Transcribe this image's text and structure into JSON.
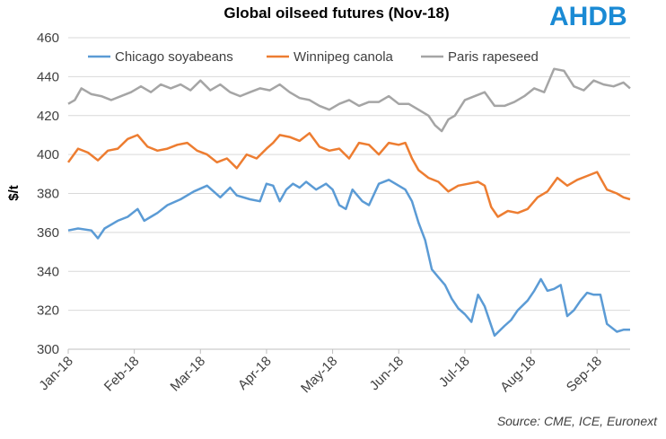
{
  "chart_data": {
    "type": "line",
    "title": "Global oilseed futures (Nov-18)",
    "ylabel": "$/t",
    "xlabel": "",
    "ylim": [
      300,
      460
    ],
    "yticks": [
      300,
      320,
      340,
      360,
      380,
      400,
      420,
      440,
      460
    ],
    "xlim": [
      0,
      8.5
    ],
    "x_tick_labels": [
      "Jan-18",
      "Feb-18",
      "Mar-18",
      "Apr-18",
      "May-18",
      "Jun-18",
      "Jul-18",
      "Aug-18",
      "Sep-18"
    ],
    "grid": "horizontal",
    "legend_position": "top",
    "source": "Source: CME, ICE, Euronext",
    "logo_text": "AHDB",
    "series": [
      {
        "name": "Chicago soyabeans",
        "color": "#5b9bd5",
        "x": [
          0,
          0.15,
          0.35,
          0.45,
          0.55,
          0.75,
          0.9,
          1.05,
          1.15,
          1.25,
          1.35,
          1.5,
          1.7,
          1.9,
          2.1,
          2.3,
          2.45,
          2.55,
          2.75,
          2.9,
          3.0,
          3.1,
          3.2,
          3.3,
          3.4,
          3.5,
          3.6,
          3.75,
          3.9,
          4.0,
          4.1,
          4.2,
          4.3,
          4.45,
          4.55,
          4.7,
          4.85,
          5.0,
          5.1,
          5.2,
          5.3,
          5.4,
          5.5,
          5.6,
          5.7,
          5.8,
          5.9,
          6.0,
          6.1,
          6.2,
          6.3,
          6.45,
          6.6,
          6.7,
          6.8,
          6.95,
          7.05,
          7.15,
          7.25,
          7.35,
          7.45,
          7.55,
          7.65,
          7.75,
          7.85,
          7.95,
          8.05,
          8.15,
          8.3,
          8.4,
          8.5
        ],
        "values": [
          361,
          362,
          361,
          357,
          362,
          366,
          368,
          372,
          366,
          368,
          370,
          374,
          377,
          381,
          384,
          378,
          383,
          379,
          377,
          376,
          385,
          384,
          376,
          382,
          385,
          383,
          386,
          382,
          385,
          382,
          374,
          372,
          382,
          376,
          374,
          385,
          387,
          384,
          382,
          376,
          365,
          356,
          341,
          337,
          333,
          326,
          321,
          318,
          314,
          328,
          322,
          307,
          312,
          315,
          320,
          325,
          330,
          336,
          330,
          331,
          333,
          317,
          320,
          325,
          329,
          328,
          328,
          313,
          309,
          310,
          310
        ]
      },
      {
        "name": "Winnipeg canola",
        "color": "#ed7d31",
        "x": [
          0,
          0.15,
          0.3,
          0.45,
          0.6,
          0.75,
          0.9,
          1.05,
          1.2,
          1.35,
          1.5,
          1.65,
          1.8,
          1.95,
          2.1,
          2.25,
          2.4,
          2.55,
          2.7,
          2.85,
          3.0,
          3.1,
          3.2,
          3.35,
          3.5,
          3.65,
          3.8,
          3.95,
          4.1,
          4.25,
          4.4,
          4.55,
          4.7,
          4.85,
          5.0,
          5.1,
          5.2,
          5.3,
          5.45,
          5.6,
          5.75,
          5.9,
          6.05,
          6.2,
          6.3,
          6.4,
          6.5,
          6.65,
          6.8,
          6.95,
          7.1,
          7.25,
          7.4,
          7.55,
          7.7,
          7.85,
          8.0,
          8.15,
          8.3,
          8.4,
          8.5
        ],
        "values": [
          396,
          403,
          401,
          397,
          402,
          403,
          408,
          410,
          404,
          402,
          403,
          405,
          406,
          402,
          400,
          396,
          398,
          393,
          400,
          398,
          403,
          406,
          410,
          409,
          407,
          411,
          404,
          402,
          403,
          398,
          406,
          405,
          400,
          406,
          405,
          406,
          398,
          392,
          388,
          386,
          381,
          384,
          385,
          386,
          384,
          373,
          368,
          371,
          370,
          372,
          378,
          381,
          388,
          384,
          387,
          389,
          391,
          382,
          380,
          378,
          377
        ]
      },
      {
        "name": "Paris rapeseed",
        "color": "#a5a5a5",
        "x": [
          0,
          0.1,
          0.2,
          0.35,
          0.5,
          0.65,
          0.8,
          0.95,
          1.1,
          1.25,
          1.4,
          1.55,
          1.7,
          1.85,
          2.0,
          2.15,
          2.3,
          2.45,
          2.6,
          2.75,
          2.9,
          3.05,
          3.2,
          3.35,
          3.5,
          3.65,
          3.8,
          3.95,
          4.1,
          4.25,
          4.4,
          4.55,
          4.7,
          4.85,
          5.0,
          5.15,
          5.3,
          5.45,
          5.55,
          5.65,
          5.75,
          5.85,
          6.0,
          6.15,
          6.3,
          6.45,
          6.6,
          6.75,
          6.9,
          7.05,
          7.2,
          7.35,
          7.5,
          7.65,
          7.8,
          7.95,
          8.1,
          8.25,
          8.4,
          8.5
        ],
        "values": [
          426,
          428,
          434,
          431,
          430,
          428,
          430,
          432,
          435,
          432,
          436,
          434,
          436,
          433,
          438,
          433,
          436,
          432,
          430,
          432,
          434,
          433,
          436,
          432,
          429,
          428,
          425,
          423,
          426,
          428,
          425,
          427,
          427,
          430,
          426,
          426,
          423,
          420,
          415,
          412,
          418,
          420,
          428,
          430,
          432,
          425,
          425,
          427,
          430,
          434,
          432,
          444,
          443,
          435,
          433,
          438,
          436,
          435,
          437,
          434
        ]
      }
    ]
  }
}
